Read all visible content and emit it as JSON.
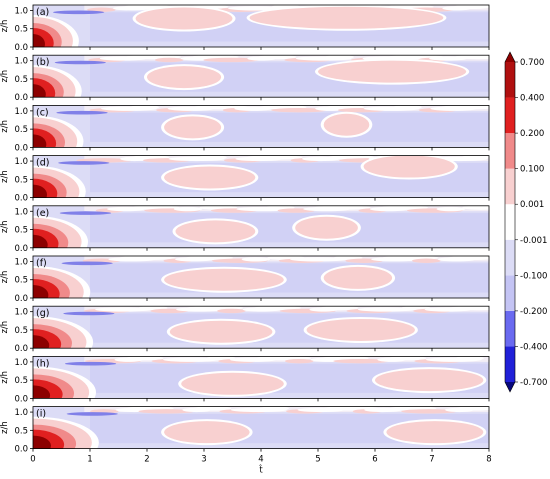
{
  "chart_data": {
    "type": "contour",
    "panels": [
      "(a)",
      "(b)",
      "(c)",
      "(d)",
      "(e)",
      "(f)",
      "(g)",
      "(h)",
      "(i)"
    ],
    "xlabel": "t̂",
    "ylabel": "z/h",
    "xlim": [
      0,
      8
    ],
    "ylim": [
      0,
      1.15
    ],
    "x_ticks": [
      "0",
      "1",
      "2",
      "3",
      "4",
      "5",
      "6",
      "7",
      "8"
    ],
    "y_ticks": [
      "0.0",
      "0.5",
      "1.0"
    ],
    "colorbar": {
      "levels": [
        "-0.700",
        "-0.400",
        "-0.200",
        "-0.100",
        "-0.001",
        "0.001",
        "0.100",
        "0.200",
        "0.400",
        "0.700"
      ],
      "colors": [
        "#08087c",
        "#2020d8",
        "#6a6af0",
        "#c4c4f4",
        "#dcdcf6",
        "#ffffff",
        "#f8d0d0",
        "#f08a8a",
        "#e02020",
        "#8c0000"
      ]
    },
    "panel_features": [
      {
        "core_extent": 0.7,
        "positive_lobes": [
          {
            "x0": 1.8,
            "x1": 3.5,
            "yc": 0.78
          },
          {
            "x0": 3.8,
            "x1": 7.2,
            "yc": 0.8
          }
        ]
      },
      {
        "core_extent": 0.75,
        "positive_lobes": [
          {
            "x0": 2.0,
            "x1": 3.3,
            "yc": 0.55
          },
          {
            "x0": 5.0,
            "x1": 7.6,
            "yc": 0.7
          }
        ]
      },
      {
        "core_extent": 0.78,
        "positive_lobes": [
          {
            "x0": 2.3,
            "x1": 3.3,
            "yc": 0.55
          },
          {
            "x0": 5.1,
            "x1": 5.9,
            "yc": 0.62
          }
        ]
      },
      {
        "core_extent": 0.82,
        "positive_lobes": [
          {
            "x0": 2.3,
            "x1": 3.9,
            "yc": 0.55
          },
          {
            "x0": 5.8,
            "x1": 7.4,
            "yc": 0.85
          }
        ]
      },
      {
        "core_extent": 0.86,
        "positive_lobes": [
          {
            "x0": 2.5,
            "x1": 3.9,
            "yc": 0.45
          },
          {
            "x0": 4.6,
            "x1": 5.7,
            "yc": 0.55
          }
        ]
      },
      {
        "core_extent": 0.9,
        "positive_lobes": [
          {
            "x0": 2.3,
            "x1": 4.4,
            "yc": 0.5
          },
          {
            "x0": 5.1,
            "x1": 6.3,
            "yc": 0.55
          }
        ]
      },
      {
        "core_extent": 0.95,
        "positive_lobes": [
          {
            "x0": 2.4,
            "x1": 4.2,
            "yc": 0.45
          },
          {
            "x0": 4.8,
            "x1": 6.7,
            "yc": 0.5
          }
        ]
      },
      {
        "core_extent": 1.0,
        "positive_lobes": [
          {
            "x0": 2.6,
            "x1": 4.4,
            "yc": 0.4
          },
          {
            "x0": 6.0,
            "x1": 7.9,
            "yc": 0.5
          }
        ]
      },
      {
        "core_extent": 1.05,
        "positive_lobes": [
          {
            "x0": 2.3,
            "x1": 3.8,
            "yc": 0.45
          },
          {
            "x0": 6.2,
            "x1": 7.9,
            "yc": 0.45
          }
        ]
      }
    ]
  }
}
